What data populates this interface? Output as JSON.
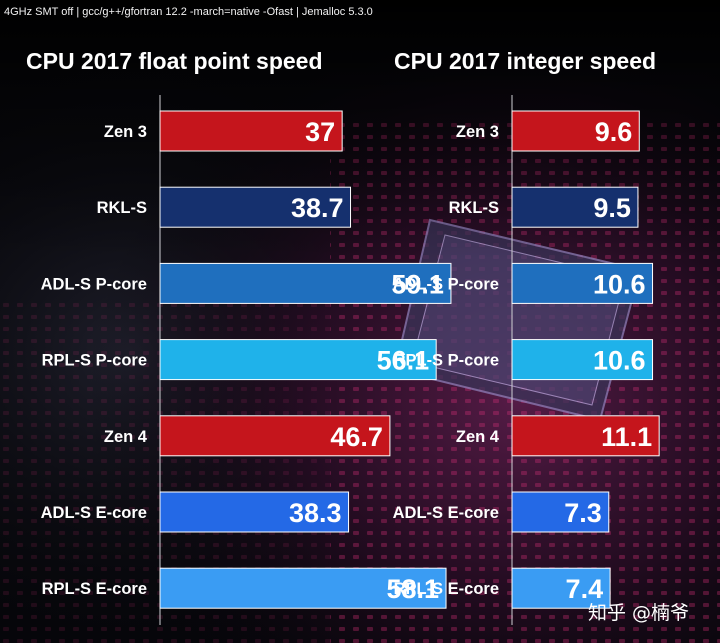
{
  "header_note": "4GHz SMT off | gcc/g++/gfortran 12.2  -march=native -Ofast | Jemalloc 5.3.0",
  "watermark": "知乎 @楠爷",
  "colors": {
    "zen": "#c5151c",
    "rkl": "#15306e",
    "adl_p": "#1f6fbe",
    "rpl_p": "#1fb2ea",
    "adl_e": "#2469e6",
    "rpl_e": "#3a9cf3"
  },
  "chart_data": [
    {
      "type": "bar",
      "orientation": "horizontal",
      "title": "CPU 2017 float point speed",
      "categories": [
        "Zen 3",
        "RKL-S",
        "ADL-S P-core",
        "RPL-S P-core",
        "Zen 4",
        "ADL-S E-core",
        "RPL-S E-core"
      ],
      "values": [
        37,
        38.7,
        59.1,
        56.1,
        46.7,
        38.3,
        58.1
      ],
      "value_labels": [
        "37",
        "38.7",
        "59.1",
        "56.1",
        "46.7",
        "38.3",
        "58.1"
      ],
      "bar_colors": [
        "#c5151c",
        "#15306e",
        "#1f6fbe",
        "#1fb2ea",
        "#c5151c",
        "#2469e6",
        "#3a9cf3"
      ],
      "xlim": [
        0,
        65
      ],
      "grid": false
    },
    {
      "type": "bar",
      "orientation": "horizontal",
      "title": "CPU 2017 integer speed",
      "categories": [
        "Zen 3",
        "RKL-S",
        "ADL-S P-core",
        "RPL-S P-core",
        "Zen 4",
        "ADL-S E-core",
        "RPL-S E-core"
      ],
      "values": [
        9.6,
        9.5,
        10.6,
        10.6,
        11.1,
        7.3,
        7.4
      ],
      "value_labels": [
        "9.6",
        "9.5",
        "10.6",
        "10.6",
        "11.1",
        "7.3",
        "7.4"
      ],
      "bar_colors": [
        "#c5151c",
        "#15306e",
        "#1f6fbe",
        "#1fb2ea",
        "#c5151c",
        "#2469e6",
        "#3a9cf3"
      ],
      "xlim": [
        0,
        13.2
      ],
      "grid": false
    }
  ]
}
